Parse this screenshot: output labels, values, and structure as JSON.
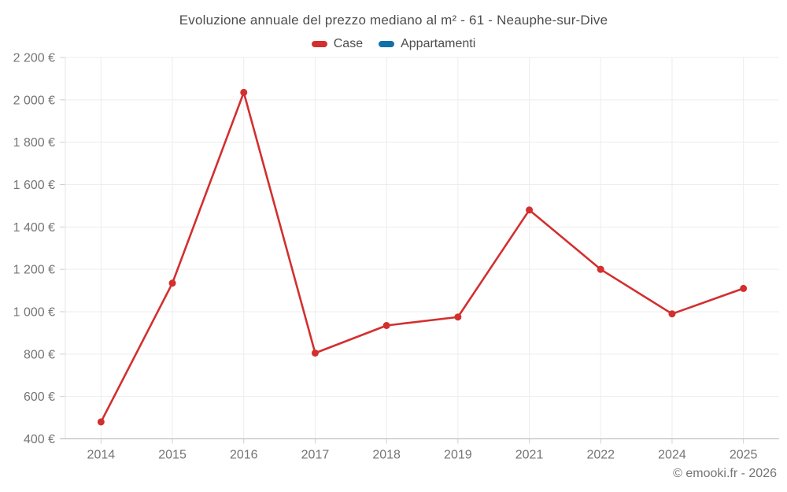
{
  "chart_data": {
    "type": "line",
    "title": "Evoluzione annuale del prezzo mediano al m² - 61 - Neauphe-sur-Dive",
    "categories": [
      "2014",
      "2015",
      "2016",
      "2017",
      "2018",
      "2019",
      "2021",
      "2022",
      "2024",
      "2025"
    ],
    "series": [
      {
        "name": "Case",
        "color": "#d32f2f",
        "values": [
          480,
          1135,
          2035,
          805,
          935,
          975,
          1480,
          1200,
          990,
          1110
        ]
      },
      {
        "name": "Appartamenti",
        "color": "#1270a8",
        "values": []
      }
    ],
    "unit": "€/m²",
    "ylim": [
      400,
      2200
    ],
    "y_tick_step": 200,
    "y_tick_labels": [
      "400 €",
      "600 €",
      "800 €",
      "1 000 €",
      "1 200 €",
      "1 400 €",
      "1 600 €",
      "1 800 €",
      "2 000 €",
      "2 200 €"
    ],
    "grid": true,
    "legend_position": "top"
  },
  "footer": {
    "credit": "© emooki.fr - 2026"
  }
}
